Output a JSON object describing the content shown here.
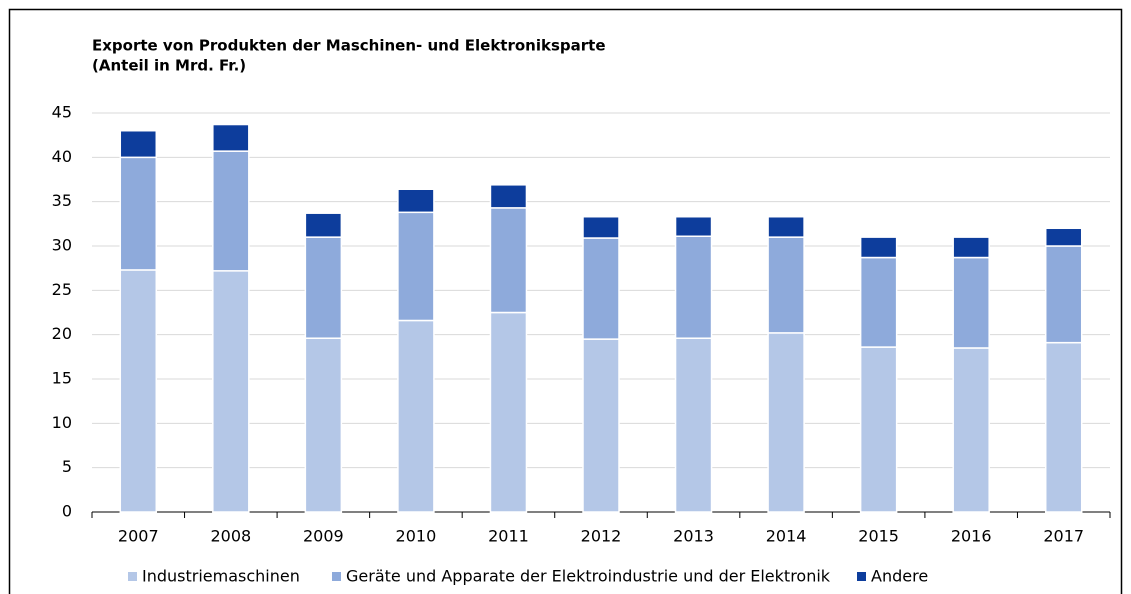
{
  "chart_data": {
    "type": "stacked-bar",
    "title": "Exporte von Produkten der Maschinen- und Elektroniksparte",
    "subtitle": "(Anteil in Mrd. Fr.)",
    "categories": [
      "2007",
      "2008",
      "2009",
      "2010",
      "2011",
      "2012",
      "2013",
      "2014",
      "2015",
      "2016",
      "2017"
    ],
    "series": [
      {
        "name": "Industriemaschinen",
        "color": "#b4c7e7",
        "values": [
          27.3,
          27.2,
          19.6,
          21.6,
          22.5,
          19.5,
          19.6,
          20.2,
          18.6,
          18.5,
          19.1
        ]
      },
      {
        "name": "Geräte und Apparate der Elektroindustrie und der Elektronik",
        "color": "#8eaadb",
        "values": [
          12.7,
          13.5,
          11.4,
          12.2,
          11.8,
          11.4,
          11.5,
          10.8,
          10.1,
          10.2,
          10.9
        ]
      },
      {
        "name": "Andere",
        "color": "#0d3d9c",
        "values": [
          3.0,
          3.0,
          2.7,
          2.6,
          2.6,
          2.4,
          2.2,
          2.3,
          2.3,
          2.3,
          2.0
        ]
      }
    ],
    "ylim": [
      0,
      45
    ],
    "yticks": [
      0,
      5,
      10,
      15,
      20,
      25,
      30,
      35,
      40,
      45
    ],
    "grid": true,
    "legend": "bottom"
  }
}
